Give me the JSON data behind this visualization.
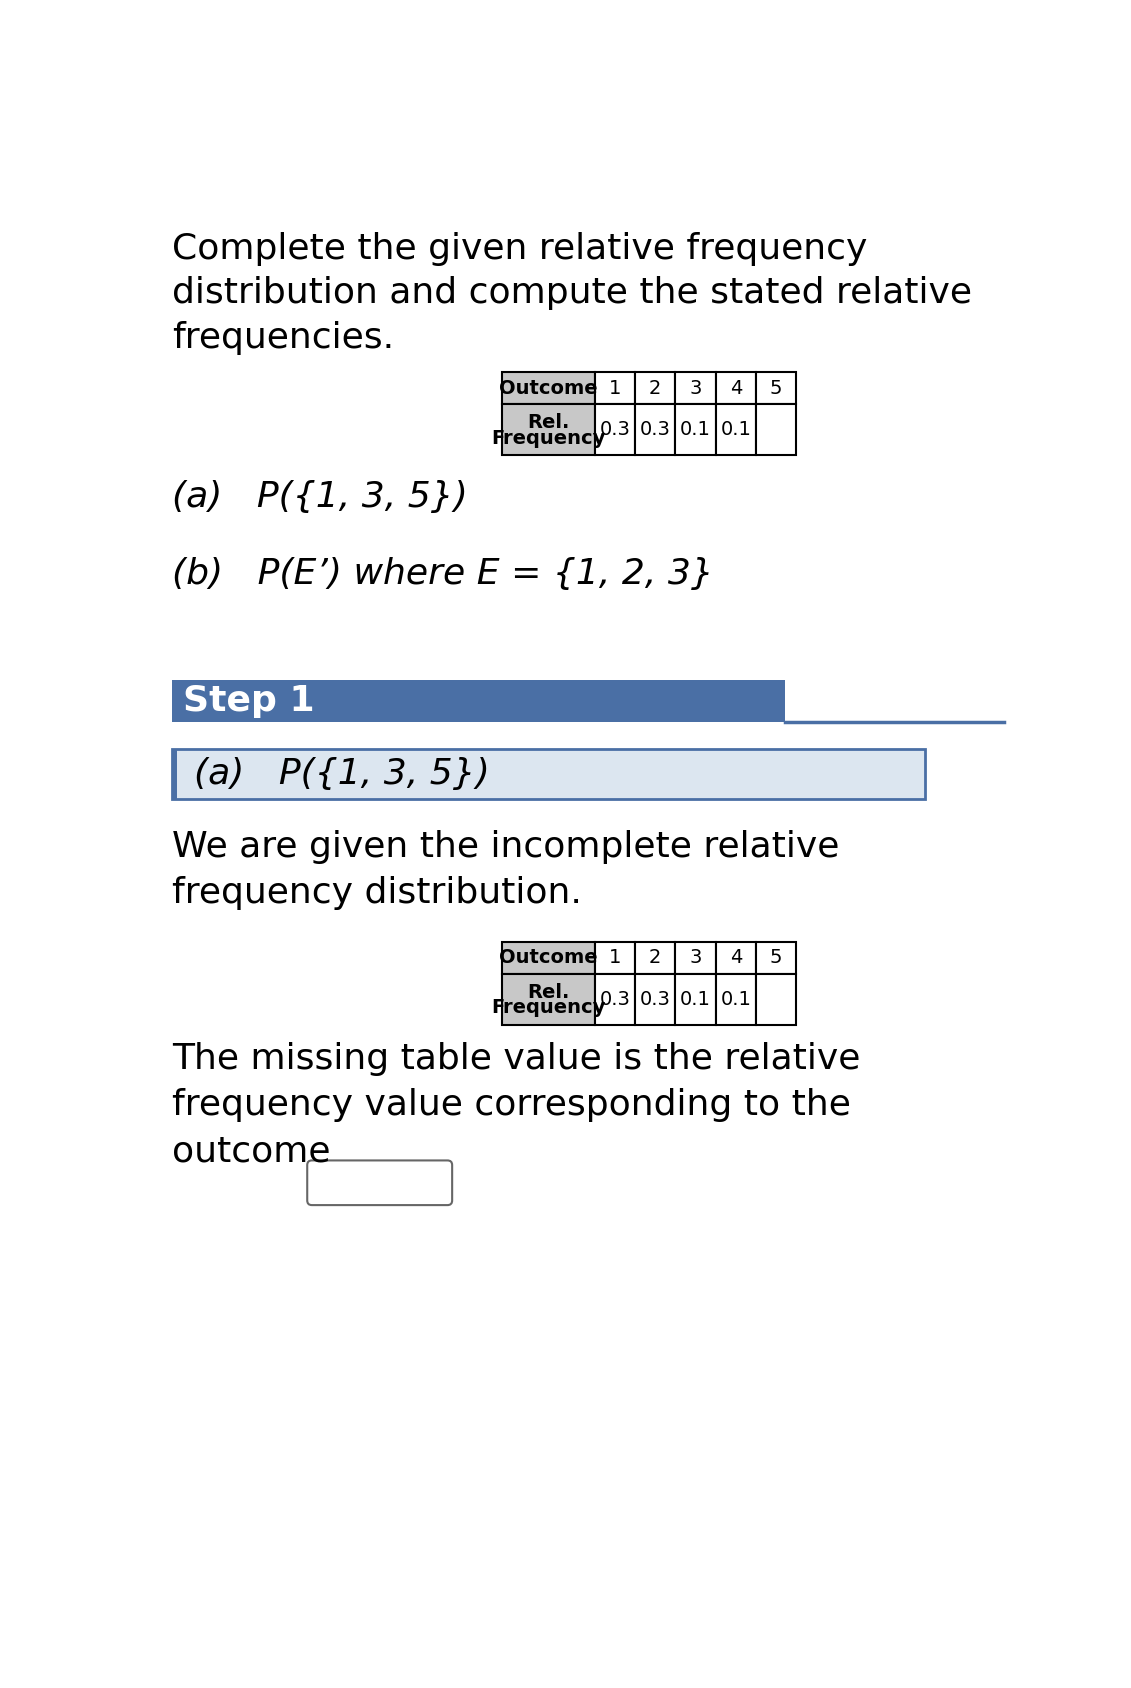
{
  "title_line1": "Complete the given relative frequency",
  "title_line2": "distribution and compute the stated relative",
  "title_line3": "frequencies.",
  "part_a_text": "(a)   P({1, 3, 5})",
  "part_b_text": "(b)   P(E’) where E = {1, 2, 3}",
  "step1_text": "Step 1",
  "step1_bg": "#4a6fa5",
  "step1_text_color": "#ffffff",
  "box_a_text": "(a)   P({1, 3, 5})",
  "box_bg": "#dce6f0",
  "box_border": "#4a6fa5",
  "body_text1": "We are given the incomplete relative",
  "body_text2": "frequency distribution.",
  "missing_text1": "The missing table value is the relative",
  "missing_text2": "frequency value corresponding to the",
  "missing_text3": "outcome",
  "table_header_bg": "#c8c8c8",
  "table_border": "#000000",
  "background": "#ffffff",
  "font_color": "#000000",
  "title_fontsize": 26,
  "body_fontsize": 26,
  "step_fontsize": 26,
  "table_fontsize": 15,
  "table_outcomes": [
    "1",
    "2",
    "3",
    "4",
    "5"
  ],
  "table_values": [
    "0.3",
    "0.3",
    "0.1",
    "0.1",
    ""
  ]
}
